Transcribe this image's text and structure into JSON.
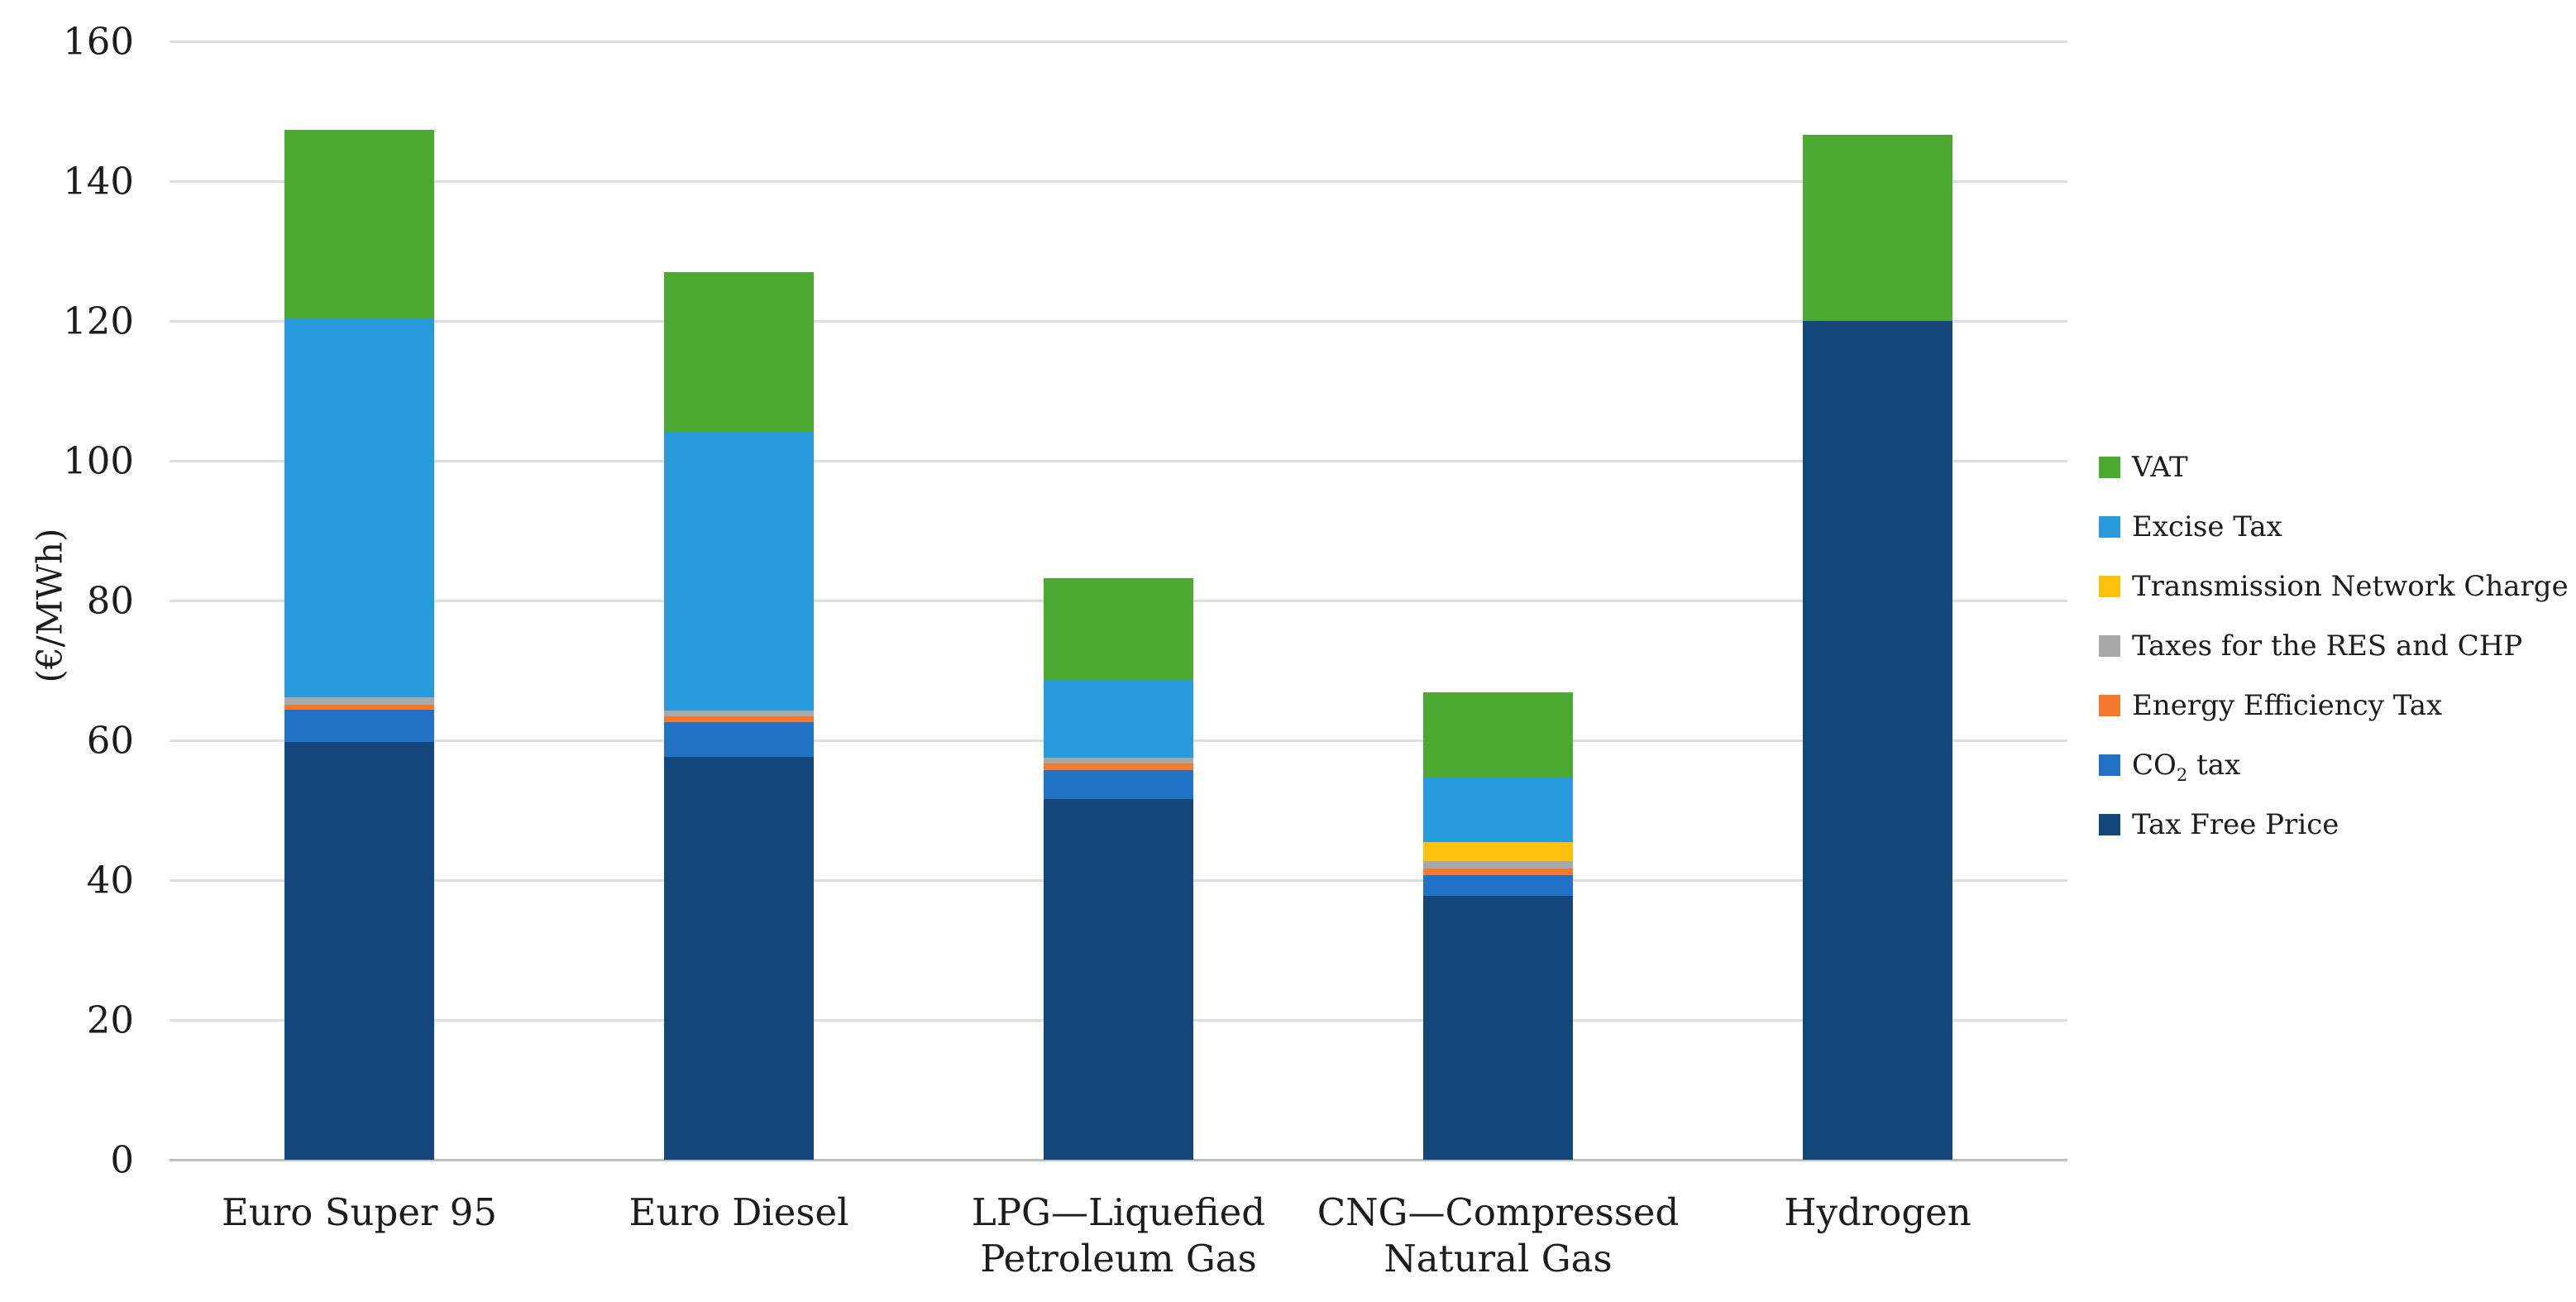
{
  "figure": {
    "background": "#FFFFFF",
    "text_color": "#1C1C1C",
    "gridline_color": "#DEDEDE",
    "axis_line_color": "#BFBFBF"
  },
  "chart_data": {
    "type": "bar",
    "stacked": true,
    "title": "",
    "xlabel": "",
    "ylabel": "(€/MWh)",
    "ylim": [
      0,
      160
    ],
    "ytick_step": 20,
    "ytick_labels": [
      "0",
      "20",
      "40",
      "60",
      "80",
      "100",
      "120",
      "140",
      "160"
    ],
    "grid": "horizontal",
    "legend_position": "right",
    "categories": [
      {
        "lines": [
          "Euro Super 95"
        ]
      },
      {
        "lines": [
          "Euro Diesel"
        ]
      },
      {
        "lines": [
          "LPG—Liquefied",
          "Petroleum Gas"
        ]
      },
      {
        "lines": [
          "CNG—Compressed",
          "Natural Gas"
        ]
      },
      {
        "lines": [
          "Hydrogen"
        ]
      }
    ],
    "series_bottom_to_top": [
      {
        "id": "tax_free_price",
        "label": "Tax Free Price",
        "color": "#13477C",
        "values": [
          59.8,
          57.6,
          51.6,
          37.7,
          120.0
        ]
      },
      {
        "id": "co2_tax",
        "label": "CO2 tax",
        "label_pre": "CO",
        "label_sub": "2",
        "label_post": " tax",
        "color": "#2171C7",
        "values": [
          4.6,
          5.0,
          4.1,
          3.0,
          0
        ]
      },
      {
        "id": "energy_efficiency_tax",
        "label": "Energy Efficiency Tax",
        "color": "#F5792C",
        "values": [
          0.7,
          0.8,
          1.0,
          1.0,
          0
        ]
      },
      {
        "id": "res_chp_taxes",
        "label": "Taxes for the RES and CHP",
        "color": "#A8A8A8",
        "values": [
          1.1,
          0.9,
          0.8,
          1.0,
          0
        ]
      },
      {
        "id": "transmission_network_charge",
        "label": "Transmission Network Charge",
        "color": "#FEC20D",
        "values": [
          0,
          0,
          0,
          2.7,
          0
        ]
      },
      {
        "id": "excise_tax",
        "label": "Excise Tax",
        "color": "#279BDB",
        "values": [
          54.2,
          39.9,
          11.2,
          9.3,
          0
        ]
      },
      {
        "id": "vat",
        "label": "VAT",
        "color": "#4CA932",
        "values": [
          26.9,
          22.8,
          14.5,
          12.2,
          26.6
        ]
      }
    ],
    "totals": [
      147.3,
      126.9,
      83.2,
      66.9,
      146.6
    ]
  }
}
